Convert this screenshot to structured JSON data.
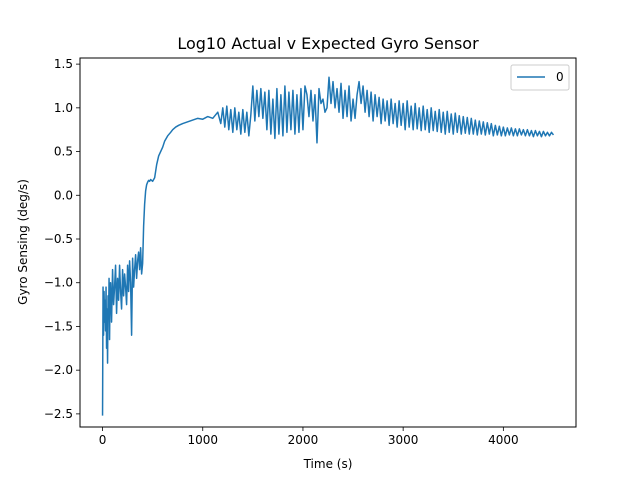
{
  "chart_data": {
    "type": "line",
    "title": "Log10 Actual v Expected Gyro Sensor",
    "xlabel": "Time (s)",
    "ylabel": "Gyro Sensing (deg/s)",
    "xlim": [
      -225,
      4725
    ],
    "ylim": [
      -2.65,
      1.57
    ],
    "xticks": [
      0,
      1000,
      2000,
      3000,
      4000
    ],
    "yticks": [
      -2.5,
      -2.0,
      -1.5,
      -1.0,
      -0.5,
      0.0,
      0.5,
      1.0,
      1.5
    ],
    "ytick_labels": [
      "−2.5",
      "−2.0",
      "−1.5",
      "−1.0",
      "−0.5",
      "0.0",
      "0.5",
      "1.0",
      "1.5"
    ],
    "grid": false,
    "legend": {
      "position": "top-right",
      "entries": [
        "0"
      ]
    },
    "series": [
      {
        "name": "0",
        "color": "#1f77b4",
        "x": [
          0,
          5,
          10,
          15,
          20,
          25,
          30,
          35,
          40,
          45,
          50,
          55,
          60,
          65,
          70,
          75,
          80,
          90,
          100,
          110,
          120,
          130,
          140,
          150,
          160,
          170,
          180,
          190,
          200,
          210,
          220,
          230,
          240,
          250,
          260,
          270,
          280,
          290,
          300,
          310,
          320,
          330,
          340,
          350,
          360,
          370,
          380,
          390,
          400,
          410,
          420,
          430,
          440,
          450,
          460,
          470,
          480,
          500,
          520,
          540,
          560,
          580,
          600,
          620,
          650,
          680,
          700,
          730,
          760,
          800,
          850,
          900,
          950,
          1000,
          1050,
          1100,
          1150,
          1180,
          1200,
          1220,
          1240,
          1260,
          1280,
          1300,
          1320,
          1340,
          1360,
          1380,
          1400,
          1420,
          1440,
          1460,
          1480,
          1500,
          1520,
          1540,
          1560,
          1580,
          1600,
          1620,
          1640,
          1660,
          1680,
          1700,
          1720,
          1740,
          1760,
          1780,
          1800,
          1820,
          1840,
          1860,
          1880,
          1900,
          1920,
          1940,
          1960,
          1980,
          2000,
          2020,
          2040,
          2060,
          2080,
          2100,
          2120,
          2140,
          2160,
          2180,
          2200,
          2220,
          2240,
          2260,
          2280,
          2300,
          2320,
          2340,
          2360,
          2380,
          2400,
          2420,
          2440,
          2460,
          2480,
          2500,
          2520,
          2540,
          2560,
          2580,
          2600,
          2620,
          2640,
          2660,
          2680,
          2700,
          2720,
          2740,
          2760,
          2780,
          2800,
          2820,
          2840,
          2860,
          2880,
          2900,
          2920,
          2940,
          2960,
          2980,
          3000,
          3020,
          3040,
          3060,
          3080,
          3100,
          3120,
          3140,
          3160,
          3180,
          3200,
          3220,
          3240,
          3260,
          3280,
          3300,
          3320,
          3340,
          3360,
          3380,
          3400,
          3420,
          3440,
          3460,
          3480,
          3500,
          3520,
          3540,
          3560,
          3580,
          3600,
          3620,
          3640,
          3660,
          3680,
          3700,
          3720,
          3740,
          3760,
          3780,
          3800,
          3820,
          3840,
          3860,
          3880,
          3900,
          3920,
          3940,
          3960,
          3980,
          4000,
          4020,
          4040,
          4060,
          4080,
          4100,
          4120,
          4140,
          4160,
          4180,
          4200,
          4220,
          4240,
          4260,
          4280,
          4300,
          4320,
          4340,
          4360,
          4380,
          4400,
          4420,
          4440,
          4460,
          4480,
          4500
        ],
        "y": [
          -2.52,
          -1.05,
          -1.6,
          -1.1,
          -1.45,
          -1.2,
          -1.55,
          -1.05,
          -1.75,
          -1.3,
          -1.92,
          -1.15,
          -1.4,
          -0.95,
          -1.65,
          -1.1,
          -1.0,
          -1.45,
          -0.85,
          -1.25,
          -1.05,
          -0.8,
          -1.35,
          -0.95,
          -1.2,
          -0.8,
          -1.1,
          -1.3,
          -0.85,
          -1.15,
          -0.9,
          -1.05,
          -1.25,
          -0.8,
          -1.1,
          -0.75,
          -1.0,
          -1.6,
          -0.72,
          -1.05,
          -0.85,
          -0.68,
          -0.95,
          -0.75,
          -0.65,
          -0.85,
          -0.6,
          -0.9,
          -0.78,
          -0.35,
          -0.1,
          0.05,
          0.12,
          0.15,
          0.17,
          0.16,
          0.18,
          0.16,
          0.2,
          0.35,
          0.45,
          0.5,
          0.55,
          0.62,
          0.68,
          0.72,
          0.75,
          0.78,
          0.8,
          0.82,
          0.84,
          0.86,
          0.88,
          0.87,
          0.9,
          0.88,
          0.95,
          0.82,
          1.0,
          0.78,
          1.02,
          0.75,
          0.98,
          0.72,
          1.0,
          0.75,
          0.95,
          0.7,
          0.98,
          0.72,
          0.95,
          0.68,
          0.92,
          1.25,
          0.85,
          1.2,
          0.9,
          1.22,
          0.88,
          1.18,
          0.75,
          1.2,
          0.7,
          1.1,
          0.65,
          1.22,
          0.7,
          1.15,
          0.68,
          1.25,
          0.72,
          1.18,
          0.75,
          1.2,
          0.7,
          1.15,
          0.72,
          1.22,
          0.75,
          1.25,
          1.15,
          0.9,
          1.2,
          0.85,
          1.15,
          0.6,
          1.22,
          1.05,
          1.1,
          0.95,
          1.0,
          1.35,
          1.05,
          1.3,
          1.0,
          1.22,
          0.95,
          1.28,
          0.88,
          1.2,
          0.9,
          1.25,
          0.85,
          1.1,
          0.88,
          1.15,
          1.3,
          1.05,
          1.25,
          0.95,
          1.2,
          0.9,
          1.18,
          0.85,
          1.15,
          0.9,
          1.12,
          0.82,
          1.1,
          0.85,
          1.08,
          0.8,
          1.1,
          0.82,
          1.05,
          0.78,
          1.08,
          0.8,
          1.05,
          0.75,
          1.08,
          0.78,
          1.02,
          0.75,
          1.05,
          0.76,
          1.0,
          0.74,
          1.02,
          0.75,
          0.98,
          0.72,
          1.0,
          0.74,
          0.96,
          0.73,
          0.98,
          0.72,
          0.95,
          0.7,
          0.96,
          0.72,
          0.93,
          0.7,
          0.94,
          0.72,
          0.91,
          0.7,
          0.9,
          0.71,
          0.89,
          0.7,
          0.88,
          0.7,
          0.86,
          0.69,
          0.85,
          0.7,
          0.84,
          0.69,
          0.83,
          0.7,
          0.82,
          0.68,
          0.8,
          0.69,
          0.79,
          0.68,
          0.78,
          0.68,
          0.77,
          0.69,
          0.77,
          0.68,
          0.76,
          0.68,
          0.76,
          0.69,
          0.75,
          0.68,
          0.75,
          0.68,
          0.74,
          0.67,
          0.74,
          0.68,
          0.73,
          0.67,
          0.73,
          0.68,
          0.72,
          0.68,
          0.72,
          0.69
        ]
      }
    ]
  }
}
